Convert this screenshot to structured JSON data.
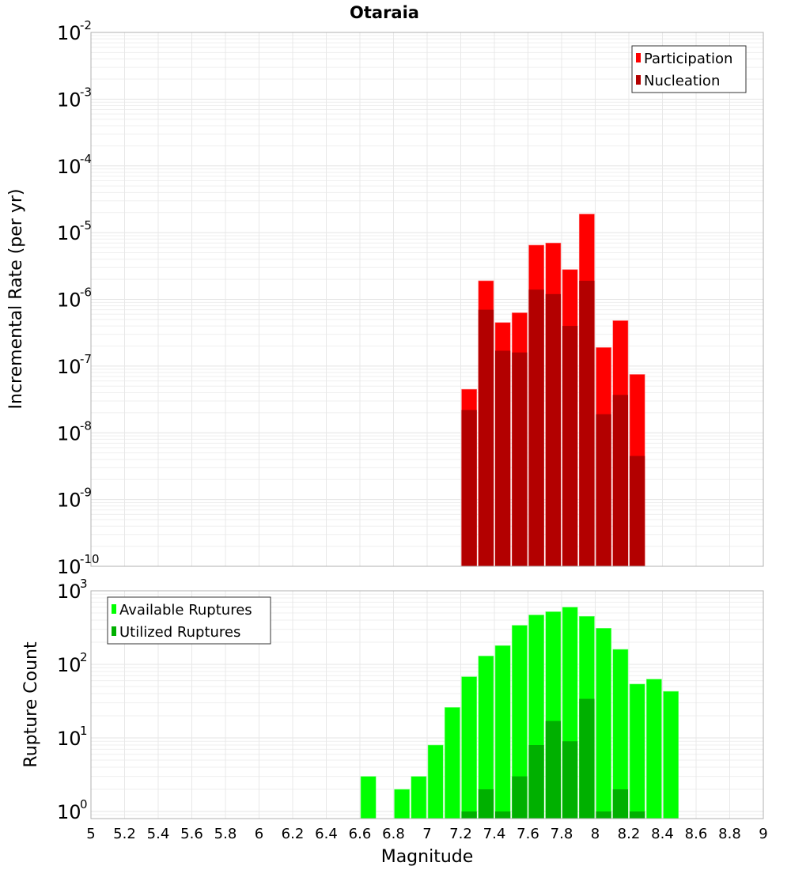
{
  "chart_data": [
    {
      "type": "bar",
      "title": "Otaraia",
      "xlabel": "",
      "ylabel": "Incremental Rate (per yr)",
      "yscale": "log",
      "ylim": [
        1e-10,
        0.01
      ],
      "xlim": [
        5,
        9
      ],
      "grid": true,
      "legend_placement": "top-right",
      "x": [
        7.25,
        7.35,
        7.45,
        7.55,
        7.65,
        7.75,
        7.85,
        7.95,
        8.05,
        8.15,
        8.25
      ],
      "series": [
        {
          "name": "Participation",
          "color": "#ff0000",
          "values": [
            4.5e-08,
            1.9e-06,
            4.5e-07,
            6.3e-07,
            6.5e-06,
            7e-06,
            2.8e-06,
            1.9e-05,
            1.9e-07,
            4.8e-07,
            7.5e-08
          ]
        },
        {
          "name": "Nucleation",
          "color": "#b30000",
          "values": [
            2.2e-08,
            7e-07,
            1.7e-07,
            1.6e-07,
            1.4e-06,
            1.2e-06,
            4e-07,
            1.9e-06,
            1.9e-08,
            3.7e-08,
            4.5e-09
          ]
        }
      ],
      "ytick_exponents": [
        -10,
        -9,
        -8,
        -7,
        -6,
        -5,
        -4,
        -3,
        -2
      ]
    },
    {
      "type": "bar",
      "title": "",
      "xlabel": "Magnitude",
      "ylabel": "Rupture Count",
      "yscale": "log",
      "ylim": [
        0.8,
        1000
      ],
      "xlim": [
        5,
        9
      ],
      "grid": true,
      "legend_placement": "top-left",
      "x": [
        6.65,
        6.75,
        6.85,
        6.95,
        7.05,
        7.15,
        7.25,
        7.35,
        7.45,
        7.55,
        7.65,
        7.75,
        7.85,
        7.95,
        8.05,
        8.15,
        8.25,
        8.35,
        8.45
      ],
      "series": [
        {
          "name": "Available Ruptures",
          "color": "#00ff00",
          "values": [
            3,
            0,
            2,
            3,
            8,
            26,
            68,
            130,
            180,
            340,
            470,
            520,
            600,
            450,
            310,
            160,
            54,
            63,
            43
          ]
        },
        {
          "name": "Utilized Ruptures",
          "color": "#00b000",
          "values": [
            0,
            0,
            0,
            0,
            0,
            0,
            1,
            2,
            1,
            3,
            8,
            17,
            9,
            34,
            1,
            2,
            1,
            0,
            0
          ]
        }
      ],
      "ytick_exponents": [
        0,
        1,
        2,
        3
      ],
      "xticks": [
        "5",
        "5.2",
        "5.4",
        "5.6",
        "5.8",
        "6",
        "6.2",
        "6.4",
        "6.6",
        "6.8",
        "7",
        "7.2",
        "7.4",
        "7.6",
        "7.8",
        "8",
        "8.2",
        "8.4",
        "8.6",
        "8.8",
        "9"
      ]
    }
  ]
}
